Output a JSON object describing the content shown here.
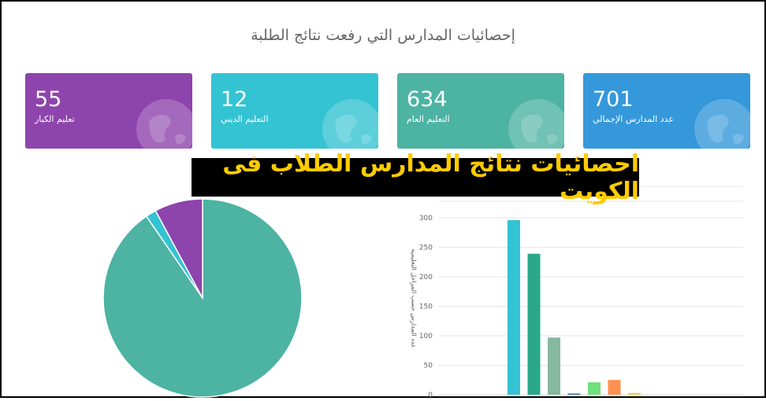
{
  "page_title": "إحصائيات المدارس التي رفعت نتائج الطلبة",
  "banner_text": "احصائيات نتائج المدارس الطلاب فى الكويت",
  "cards": [
    {
      "value": "55",
      "label": "تعليم الكبار",
      "color": "#8e44ad"
    },
    {
      "value": "12",
      "label": "التعليم الديني",
      "color": "#34c3d3"
    },
    {
      "value": "634",
      "label": "التعليم العام",
      "color": "#4db3a2"
    },
    {
      "value": "701",
      "label": "عدد المدارس الإجمالي",
      "color": "#3498db"
    }
  ],
  "chart_data": [
    {
      "type": "pie",
      "slices": [
        {
          "value": 634,
          "color": "#4db3a2"
        },
        {
          "value": 12,
          "color": "#34c3d3"
        },
        {
          "value": 55,
          "color": "#8e44ad"
        }
      ]
    },
    {
      "type": "bar",
      "ylabel": "عدد المدارس حسب المراحل التعليمية",
      "ylim": [
        0,
        300
      ],
      "yticks": [
        0,
        50,
        100,
        150,
        200,
        250,
        300
      ],
      "grid": true,
      "values": [
        296,
        239,
        97,
        2,
        21,
        25,
        3
      ],
      "colors": [
        "#34c3d3",
        "#2aa889",
        "#86b8a0",
        "#3a6f9a",
        "#6fe07a",
        "#ff9050",
        "#f0d050"
      ]
    }
  ]
}
